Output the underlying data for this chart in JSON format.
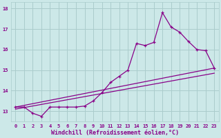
{
  "title": "",
  "xlabel": "Windchill (Refroidissement éolien,°C)",
  "ylabel": "",
  "xlim": [
    -0.5,
    23.5
  ],
  "ylim": [
    12.5,
    18.3
  ],
  "yticks": [
    13,
    14,
    15,
    16,
    17,
    18
  ],
  "xticks": [
    0,
    1,
    2,
    3,
    4,
    5,
    6,
    7,
    8,
    9,
    10,
    11,
    12,
    13,
    14,
    15,
    16,
    17,
    18,
    19,
    20,
    21,
    22,
    23
  ],
  "bg_color": "#cce8e8",
  "line_color": "#880088",
  "line1_x": [
    0,
    1,
    2,
    3,
    4,
    5,
    6,
    7,
    8,
    9,
    10,
    11,
    12,
    13,
    14,
    15,
    16,
    17,
    18,
    19,
    20,
    21,
    22,
    23
  ],
  "line1_y": [
    13.2,
    13.2,
    12.9,
    12.75,
    13.2,
    13.2,
    13.2,
    13.2,
    13.25,
    13.5,
    13.9,
    14.4,
    14.7,
    15.0,
    16.3,
    16.2,
    16.35,
    17.8,
    17.1,
    16.85,
    16.4,
    16.0,
    15.95,
    15.1
  ],
  "line2_x": [
    0,
    23
  ],
  "line2_y": [
    13.2,
    15.1
  ],
  "line3_x": [
    0,
    23
  ],
  "line3_y": [
    13.1,
    14.85
  ],
  "grid_color": "#aacccc",
  "tick_fontsize": 5.0,
  "xlabel_fontsize": 6.0
}
